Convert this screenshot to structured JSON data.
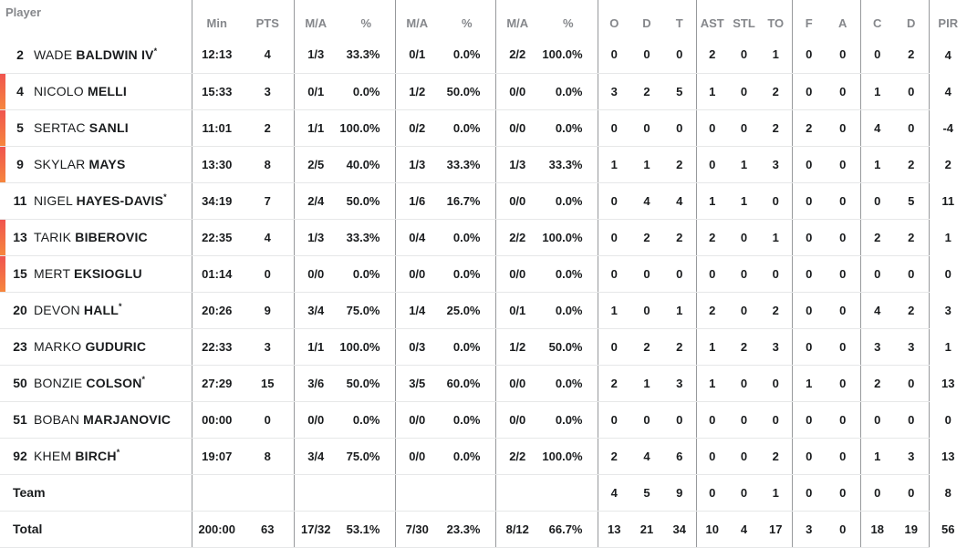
{
  "table": {
    "player_header": "Player",
    "stat_headers": [
      "Min",
      "PTS",
      "M/A",
      "%",
      "M/A",
      "%",
      "M/A",
      "%",
      "O",
      "D",
      "T",
      "AST",
      "STL",
      "TO",
      "F",
      "A",
      "C",
      "D",
      "PIR"
    ],
    "rows": [
      {
        "type": "player",
        "number": "2",
        "first_name": "WADE",
        "last_name": "BALDWIN IV",
        "starter": true,
        "on_court": false,
        "stats": [
          "12:13",
          "4",
          "1/3",
          "33.3%",
          "0/1",
          "0.0%",
          "2/2",
          "100.0%",
          "0",
          "0",
          "0",
          "2",
          "0",
          "1",
          "0",
          "0",
          "0",
          "2",
          "4"
        ]
      },
      {
        "type": "player",
        "number": "4",
        "first_name": "NICOLO",
        "last_name": "MELLI",
        "starter": false,
        "on_court": true,
        "stats": [
          "15:33",
          "3",
          "0/1",
          "0.0%",
          "1/2",
          "50.0%",
          "0/0",
          "0.0%",
          "3",
          "2",
          "5",
          "1",
          "0",
          "2",
          "0",
          "0",
          "1",
          "0",
          "4"
        ]
      },
      {
        "type": "player",
        "number": "5",
        "first_name": "SERTAC",
        "last_name": "SANLI",
        "starter": false,
        "on_court": true,
        "stats": [
          "11:01",
          "2",
          "1/1",
          "100.0%",
          "0/2",
          "0.0%",
          "0/0",
          "0.0%",
          "0",
          "0",
          "0",
          "0",
          "0",
          "2",
          "2",
          "0",
          "4",
          "0",
          "-4"
        ]
      },
      {
        "type": "player",
        "number": "9",
        "first_name": "SKYLAR",
        "last_name": "MAYS",
        "starter": false,
        "on_court": true,
        "stats": [
          "13:30",
          "8",
          "2/5",
          "40.0%",
          "1/3",
          "33.3%",
          "1/3",
          "33.3%",
          "1",
          "1",
          "2",
          "0",
          "1",
          "3",
          "0",
          "0",
          "1",
          "2",
          "2"
        ]
      },
      {
        "type": "player",
        "number": "11",
        "first_name": "NIGEL",
        "last_name": "HAYES-DAVIS",
        "starter": true,
        "on_court": false,
        "stats": [
          "34:19",
          "7",
          "2/4",
          "50.0%",
          "1/6",
          "16.7%",
          "0/0",
          "0.0%",
          "0",
          "4",
          "4",
          "1",
          "1",
          "0",
          "0",
          "0",
          "0",
          "5",
          "11"
        ]
      },
      {
        "type": "player",
        "number": "13",
        "first_name": "TARIK",
        "last_name": "BIBEROVIC",
        "starter": false,
        "on_court": true,
        "stats": [
          "22:35",
          "4",
          "1/3",
          "33.3%",
          "0/4",
          "0.0%",
          "2/2",
          "100.0%",
          "0",
          "2",
          "2",
          "2",
          "0",
          "1",
          "0",
          "0",
          "2",
          "2",
          "1"
        ]
      },
      {
        "type": "player",
        "number": "15",
        "first_name": "MERT",
        "last_name": "EKSIOGLU",
        "starter": false,
        "on_court": true,
        "stats": [
          "01:14",
          "0",
          "0/0",
          "0.0%",
          "0/0",
          "0.0%",
          "0/0",
          "0.0%",
          "0",
          "0",
          "0",
          "0",
          "0",
          "0",
          "0",
          "0",
          "0",
          "0",
          "0"
        ]
      },
      {
        "type": "player",
        "number": "20",
        "first_name": "DEVON",
        "last_name": "HALL",
        "starter": true,
        "on_court": false,
        "stats": [
          "20:26",
          "9",
          "3/4",
          "75.0%",
          "1/4",
          "25.0%",
          "0/1",
          "0.0%",
          "1",
          "0",
          "1",
          "2",
          "0",
          "2",
          "0",
          "0",
          "4",
          "2",
          "3"
        ]
      },
      {
        "type": "player",
        "number": "23",
        "first_name": "MARKO",
        "last_name": "GUDURIC",
        "starter": false,
        "on_court": false,
        "stats": [
          "22:33",
          "3",
          "1/1",
          "100.0%",
          "0/3",
          "0.0%",
          "1/2",
          "50.0%",
          "0",
          "2",
          "2",
          "1",
          "2",
          "3",
          "0",
          "0",
          "3",
          "3",
          "1"
        ]
      },
      {
        "type": "player",
        "number": "50",
        "first_name": "BONZIE",
        "last_name": "COLSON",
        "starter": true,
        "on_court": false,
        "stats": [
          "27:29",
          "15",
          "3/6",
          "50.0%",
          "3/5",
          "60.0%",
          "0/0",
          "0.0%",
          "2",
          "1",
          "3",
          "1",
          "0",
          "0",
          "1",
          "0",
          "2",
          "0",
          "13"
        ]
      },
      {
        "type": "player",
        "number": "51",
        "first_name": "BOBAN",
        "last_name": "MARJANOVIC",
        "starter": false,
        "on_court": false,
        "stats": [
          "00:00",
          "0",
          "0/0",
          "0.0%",
          "0/0",
          "0.0%",
          "0/0",
          "0.0%",
          "0",
          "0",
          "0",
          "0",
          "0",
          "0",
          "0",
          "0",
          "0",
          "0",
          "0"
        ]
      },
      {
        "type": "player",
        "number": "92",
        "first_name": "KHEM",
        "last_name": "BIRCH",
        "starter": true,
        "on_court": false,
        "stats": [
          "19:07",
          "8",
          "3/4",
          "75.0%",
          "0/0",
          "0.0%",
          "2/2",
          "100.0%",
          "2",
          "4",
          "6",
          "0",
          "0",
          "2",
          "0",
          "0",
          "1",
          "3",
          "13"
        ]
      },
      {
        "type": "team",
        "label": "Team",
        "stats": [
          "",
          "",
          "",
          "",
          "",
          "",
          "",
          "",
          "4",
          "5",
          "9",
          "0",
          "0",
          "1",
          "0",
          "0",
          "0",
          "0",
          "8"
        ]
      },
      {
        "type": "total",
        "label": "Total",
        "stats": [
          "200:00",
          "63",
          "17/32",
          "53.1%",
          "7/30",
          "23.3%",
          "8/12",
          "66.7%",
          "13",
          "21",
          "34",
          "10",
          "4",
          "17",
          "3",
          "0",
          "18",
          "19",
          "56"
        ]
      }
    ]
  },
  "colors": {
    "on_court_bar_top": "#f0544f",
    "on_court_bar_bottom": "#f6863d",
    "header_text": "#85878b",
    "data_text": "#1a1c1e",
    "divider_dark": "#97999c",
    "divider_light": "#e6e7e8",
    "background": "#ffffff"
  }
}
